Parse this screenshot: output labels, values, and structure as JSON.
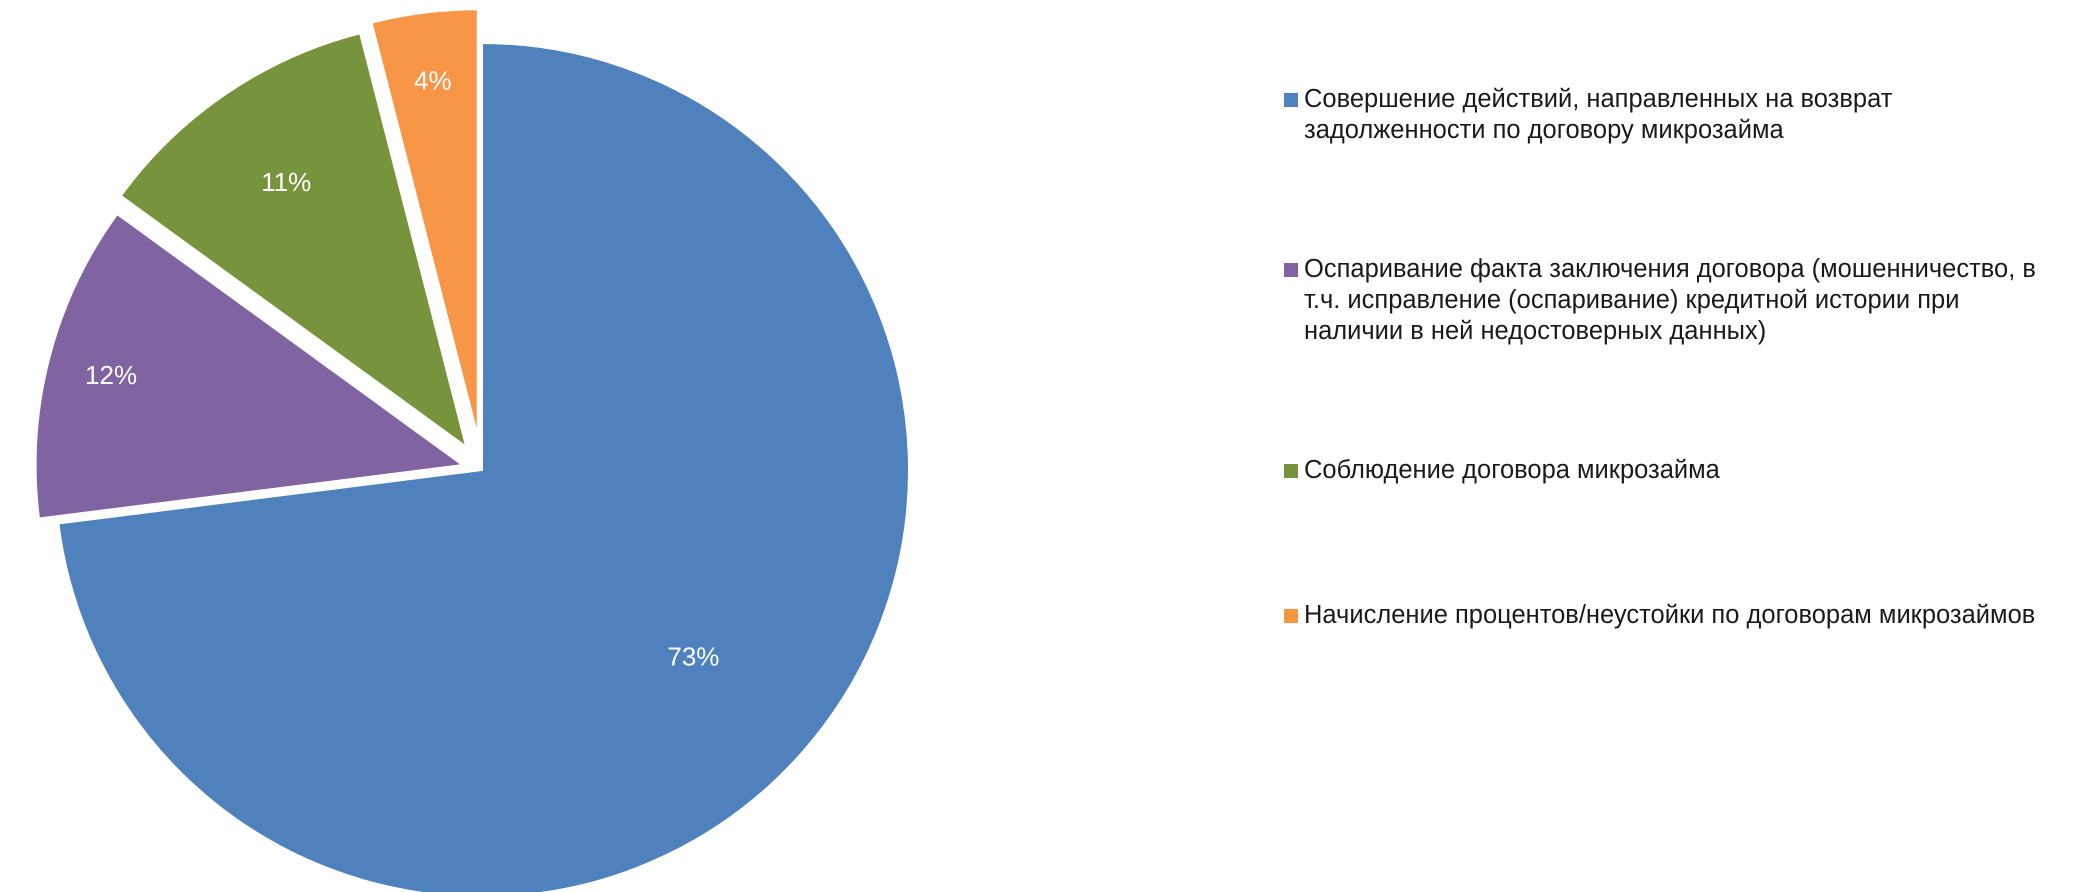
{
  "chart_data": {
    "type": "pie",
    "title": "",
    "slices": [
      {
        "name": "Совершение действий, направленных на возврат задолженности по договору микрозайма",
        "value": 73,
        "label": "73%",
        "color": "#4F81BD"
      },
      {
        "name": "Оспаривание факта заключения договора (мошенничество, в т.ч. исправление (оспаривание) кредитной истории при наличии в ней недостоверных данных)",
        "value": 12,
        "label": "12%",
        "color": "#8064A2"
      },
      {
        "name": "Соблюдение договора микрозайма",
        "value": 11,
        "label": "11%",
        "color": "#77933C"
      },
      {
        "name": "Начисление процентов/неустойки по договорам микрозаймов",
        "value": 4,
        "label": "4%",
        "color": "#F79646"
      }
    ],
    "start_angle_deg": 0,
    "direction": "clockwise",
    "exploded": true,
    "legend_position": "right"
  }
}
